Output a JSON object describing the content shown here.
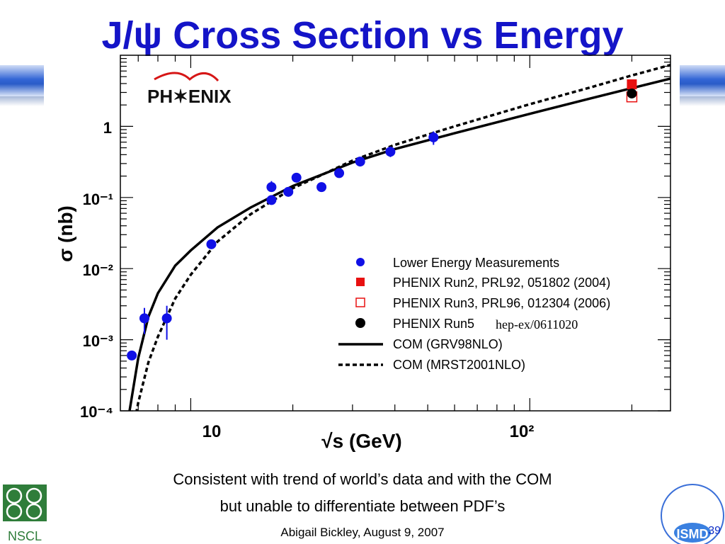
{
  "slide": {
    "title": "J/ψ Cross Section vs Energy",
    "caption_line1": "Consistent with trend of world’s data and with the COM",
    "caption_line2": "but unable to differentiate between PDF’s",
    "credit": "Abigail Bickley, August 9, 2007",
    "page_number": "39",
    "logos": {
      "phenix": "PH✶ENIX",
      "nscl": "NSCL",
      "ismd": "ISMD"
    },
    "colors": {
      "title": "#1414c8",
      "lower": "#1010e6",
      "phenix_red": "#e81010",
      "band": "#2e5fd0"
    }
  },
  "chart_data": {
    "type": "scatter",
    "xlabel": "√s (GeV)",
    "ylabel": "σ (nb)",
    "xscale": "log",
    "yscale": "log",
    "xlim": [
      6.2,
      260
    ],
    "ylim": [
      0.0001,
      10
    ],
    "x_ticklabels": [
      "10",
      "10²"
    ],
    "y_ticklabels": [
      "1",
      "10⁻¹",
      "10⁻²",
      "10⁻³",
      "10⁻⁴"
    ],
    "legend_placement": "lower-right",
    "series": [
      {
        "name": "Lower Energy Measurements",
        "marker": "circle",
        "color": "#1010e6",
        "points": [
          {
            "x": 6.7,
            "y": 0.0006
          },
          {
            "x": 7.3,
            "y": 0.002,
            "yerr": [
              0.0012,
              0.0028
            ]
          },
          {
            "x": 8.5,
            "y": 0.002,
            "yerr": [
              0.001,
              0.003
            ]
          },
          {
            "x": 11.5,
            "y": 0.022,
            "yerr": [
              0.019,
              0.025
            ]
          },
          {
            "x": 17.3,
            "y": 0.14,
            "yerr": [
              0.12,
              0.17
            ]
          },
          {
            "x": 17.3,
            "y": 0.092
          },
          {
            "x": 19.4,
            "y": 0.12
          },
          {
            "x": 20.5,
            "y": 0.19
          },
          {
            "x": 24.3,
            "y": 0.14
          },
          {
            "x": 27.4,
            "y": 0.22
          },
          {
            "x": 31.6,
            "y": 0.32
          },
          {
            "x": 38.8,
            "y": 0.44,
            "yerr": [
              0.37,
              0.52
            ]
          },
          {
            "x": 52,
            "y": 0.7,
            "yerr": [
              0.55,
              0.85
            ]
          }
        ]
      },
      {
        "name": "PHENIX Run2, PRL92, 051802 (2004)",
        "marker": "square-filled",
        "color": "#e81010",
        "points": [
          {
            "x": 200,
            "y": 3.9
          }
        ]
      },
      {
        "name": "PHENIX Run3, PRL96, 012304 (2006)",
        "marker": "square-open",
        "color": "#e81010",
        "points": [
          {
            "x": 200,
            "y": 2.6
          }
        ]
      },
      {
        "name": "PHENIX Run5",
        "note": "hep-ex/0611020",
        "marker": "circle",
        "color": "#000000",
        "points": [
          {
            "x": 200,
            "y": 2.9
          }
        ]
      },
      {
        "name": "COM (GRV98NLO)",
        "type": "line",
        "style": "solid",
        "color": "#000000",
        "x": [
          6.6,
          7,
          7.5,
          8,
          9,
          10,
          12,
          15,
          20,
          25,
          30,
          40,
          60,
          100,
          150,
          200,
          260
        ],
        "y": [
          0.0001,
          0.00055,
          0.0021,
          0.0045,
          0.011,
          0.018,
          0.038,
          0.072,
          0.145,
          0.22,
          0.31,
          0.48,
          0.8,
          1.5,
          2.45,
          3.45,
          4.7
        ]
      },
      {
        "name": "COM (MRST2001NLO)",
        "type": "line",
        "style": "dashed",
        "color": "#000000",
        "x": [
          6.6,
          7,
          7.5,
          8,
          9,
          10,
          12,
          15,
          20,
          25,
          30,
          40,
          60,
          100,
          150,
          200,
          260
        ],
        "y": [
          3e-05,
          0.00013,
          0.00048,
          0.0011,
          0.0038,
          0.0082,
          0.024,
          0.058,
          0.135,
          0.22,
          0.33,
          0.55,
          1.0,
          2.05,
          3.5,
          5.2,
          7.3
        ]
      }
    ]
  }
}
